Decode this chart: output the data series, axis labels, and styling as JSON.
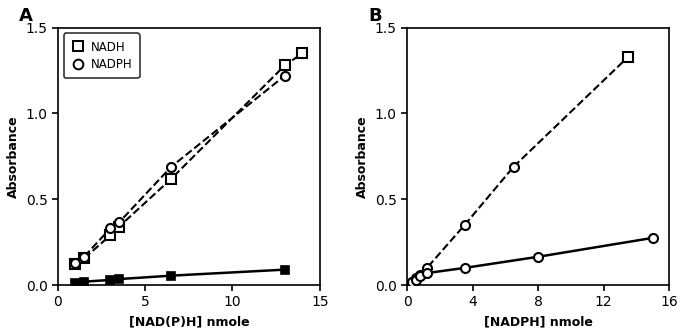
{
  "panel_A": {
    "title": "A",
    "xlabel": "[NAD(P)H] nmole",
    "ylabel": "Absorbance",
    "xlim": [
      0,
      15
    ],
    "ylim": [
      0,
      1.5
    ],
    "xticks": [
      0,
      5,
      10,
      15
    ],
    "yticks": [
      0.0,
      0.5,
      1.0,
      1.5
    ],
    "nadh_dashed_x": [
      1.0,
      1.5,
      3.0,
      3.5,
      6.5,
      13.0,
      14.0
    ],
    "nadh_dashed_y": [
      0.12,
      0.155,
      0.29,
      0.34,
      0.62,
      1.28,
      1.35
    ],
    "nadph_dashed_x": [
      1.0,
      1.5,
      3.0,
      3.5,
      6.5,
      13.0
    ],
    "nadph_dashed_y": [
      0.13,
      0.165,
      0.33,
      0.365,
      0.69,
      1.22
    ],
    "nadh_solid_x": [
      1.0,
      1.5,
      3.0,
      3.5,
      6.5,
      13.0
    ],
    "nadh_solid_y": [
      0.01,
      0.02,
      0.03,
      0.035,
      0.055,
      0.09
    ]
  },
  "panel_B": {
    "title": "B",
    "xlabel": "[NADPH] nmole",
    "ylabel": "Absorbance",
    "xlim": [
      0,
      16
    ],
    "ylim": [
      0,
      1.5
    ],
    "xticks": [
      0,
      4,
      8,
      12,
      16
    ],
    "yticks": [
      0.0,
      0.5,
      1.0,
      1.5
    ],
    "nadh_dashed_x": [
      0.3,
      0.5,
      0.8,
      1.2,
      3.5,
      6.5,
      13.5
    ],
    "nadh_dashed_y": [
      0.02,
      0.04,
      0.06,
      0.1,
      0.35,
      0.69,
      1.33
    ],
    "nadph_solid_x": [
      0.3,
      0.5,
      0.8,
      1.2,
      3.5,
      8.0,
      15.0
    ],
    "nadph_solid_y": [
      0.02,
      0.03,
      0.05,
      0.07,
      0.1,
      0.165,
      0.275
    ]
  },
  "line_color": "#000000",
  "bg_color": "#ffffff"
}
